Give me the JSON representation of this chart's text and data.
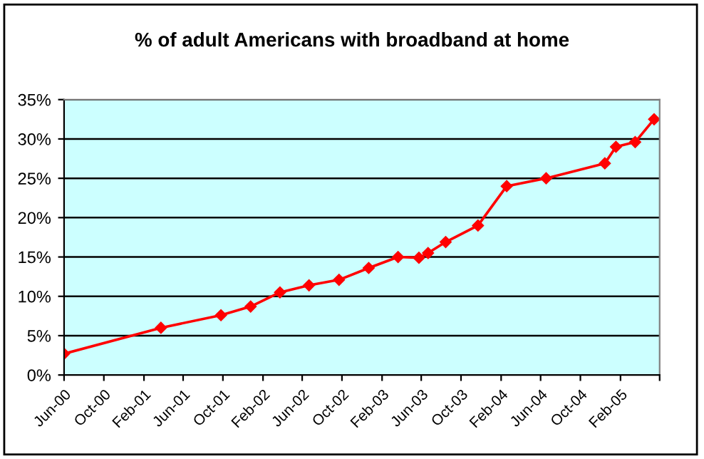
{
  "chart_data": {
    "type": "line",
    "title": "% of adult Americans with broadband at home",
    "x": [
      "2000-06-01",
      "2001-03-25",
      "2001-09-25",
      "2001-12-25",
      "2002-03-25",
      "2002-06-22",
      "2002-09-22",
      "2002-12-22",
      "2003-03-22",
      "2003-05-25",
      "2003-06-22",
      "2003-08-15",
      "2003-11-22",
      "2004-02-18",
      "2004-06-18",
      "2004-12-15",
      "2005-01-18",
      "2005-03-18",
      "2005-05-15"
    ],
    "series": [
      {
        "color": "#ff0000",
        "values": [
          2.7,
          6.0,
          7.6,
          8.7,
          10.5,
          11.4,
          12.1,
          13.6,
          15.0,
          14.9,
          15.5,
          16.9,
          19.0,
          24.0,
          25.0,
          26.9,
          29.0,
          29.6,
          32.5
        ]
      }
    ],
    "xlim": [
      "2000-06-01",
      "2005-06-01"
    ],
    "xticks": [
      {
        "value": "2000-06-01",
        "label": "Jun-00"
      },
      {
        "value": "2000-10-01",
        "label": "Oct-00"
      },
      {
        "value": "2001-02-01",
        "label": "Feb-01"
      },
      {
        "value": "2001-06-01",
        "label": "Jun-01"
      },
      {
        "value": "2001-10-01",
        "label": "Oct-01"
      },
      {
        "value": "2002-02-01",
        "label": "Feb-02"
      },
      {
        "value": "2002-06-01",
        "label": "Jun-02"
      },
      {
        "value": "2002-10-01",
        "label": "Oct-02"
      },
      {
        "value": "2003-02-01",
        "label": "Feb-03"
      },
      {
        "value": "2003-06-01",
        "label": "Jun-03"
      },
      {
        "value": "2003-10-01",
        "label": "Oct-03"
      },
      {
        "value": "2004-02-01",
        "label": "Feb-04"
      },
      {
        "value": "2004-06-01",
        "label": "Jun-04"
      },
      {
        "value": "2004-10-01",
        "label": "Oct-04"
      },
      {
        "value": "2005-02-01",
        "label": "Feb-05"
      },
      {
        "value": "2005-06-01",
        "label": null
      }
    ],
    "ylim": [
      0,
      35
    ],
    "yticks": [
      {
        "value": 0,
        "label": "0%"
      },
      {
        "value": 5,
        "label": "5%"
      },
      {
        "value": 10,
        "label": "10%"
      },
      {
        "value": 15,
        "label": "15%"
      },
      {
        "value": 20,
        "label": "20%"
      },
      {
        "value": 25,
        "label": "25%"
      },
      {
        "value": 30,
        "label": "30%"
      },
      {
        "value": 35,
        "label": "35%"
      }
    ],
    "grid": "y",
    "marker": "diamond",
    "line_style": "solid"
  }
}
